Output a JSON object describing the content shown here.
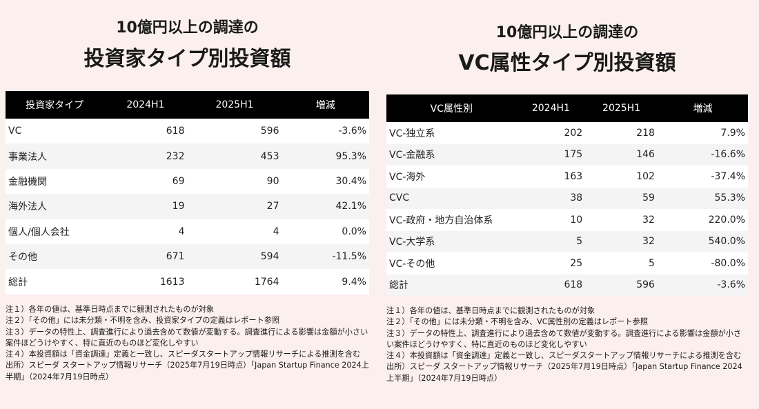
{
  "left": {
    "title_line1": "10億円以上の調達の",
    "title_line2": "投資家タイプ別投資額",
    "headers": [
      "投資家タイプ",
      "2024H1",
      "2025H1",
      "増減"
    ],
    "rows": [
      [
        "VC",
        "618",
        "596",
        "-3.6%"
      ],
      [
        "事業法人",
        "232",
        "453",
        "95.3%"
      ],
      [
        "金融機関",
        "69",
        "90",
        "30.4%"
      ],
      [
        "海外法人",
        "19",
        "27",
        "42.1%"
      ],
      [
        "個人/個人会社",
        "4",
        "4",
        "0.0%"
      ],
      [
        "その他",
        "671",
        "594",
        "-11.5%"
      ],
      [
        "総計",
        "1613",
        "1764",
        "9.4%"
      ]
    ],
    "notes": [
      "注１）各年の値は、基準日時点までに観測されたものが対象",
      "注２）「その他」には未分類・不明を含み、投資家タイプの定義はレポート参照",
      "注３）データの特性上、調査進行により過去含めて数値が変動する。調査進行による影響は金額が小さい案件ほどうけやすく、特に直近のものほど変化しやすい",
      "注４）本投資額は「資金調達」定義と一致し、スピーダスタートアップ情報リサーチによる推測を含む",
      "出所）スピーダ スタートアップ情報リサーチ（2025年7月19日時点）「Japan Startup Finance 2024上半期」（2024年7月19日時点）"
    ]
  },
  "right": {
    "title_line1": "10億円以上の調達の",
    "title_line2": "VC属性タイプ別投資額",
    "headers": [
      "VC属性別",
      "2024H1",
      "2025H1",
      "増減"
    ],
    "rows": [
      [
        "VC-独立系",
        "202",
        "218",
        "7.9%"
      ],
      [
        "VC-金融系",
        "175",
        "146",
        "-16.6%"
      ],
      [
        "VC-海外",
        "163",
        "102",
        "-37.4%"
      ],
      [
        "CVC",
        "38",
        "59",
        "55.3%"
      ],
      [
        "VC-政府・地方自治体系",
        "10",
        "32",
        "220.0%"
      ],
      [
        "VC-大学系",
        "5",
        "32",
        "540.0%"
      ],
      [
        "VC-その他",
        "25",
        "5",
        "-80.0%"
      ],
      [
        "総計",
        "618",
        "596",
        "-3.6%"
      ]
    ],
    "notes": [
      "注１）各年の値は、基準日時点までに観測されたものが対象",
      "注２）「その他」には未分類・不明を含み、VC属性別の定義はレポート参照",
      "注３）データの特性上、調査進行により過去含めて数値が変動する。調査進行による影響は金額が小さい案件ほどうけやすく、特に直近のものほど変化しやすい",
      "注４）本投資額は「資金調達」定義と一致し、スピーダスタートアップ情報リサーチによる推測を含む",
      "出所）スピーダ スタートアップ情報リサーチ（2025年7月19日時点）「Japan Startup Finance 2024上半期」（2024年7月19日時点）"
    ]
  }
}
